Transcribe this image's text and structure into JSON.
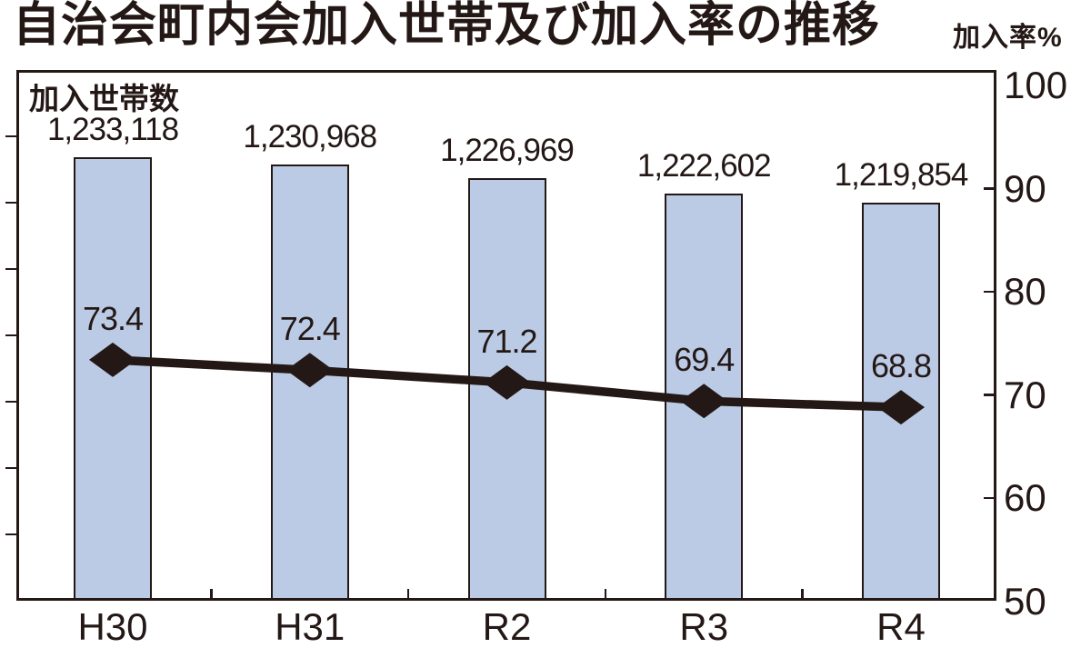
{
  "title": "自治会町内会加入世帯及び加入率の推移",
  "right_axis_title": "加入率%",
  "bar_series_label": "加入世帯数",
  "colors": {
    "ink": "#231815",
    "bar_fill": "#bccbe5",
    "background": "#ffffff"
  },
  "chart_data": {
    "type": "bar",
    "subtype": "bar-and-line-combo",
    "title": "自治会町内会加入世帯及び加入率の推移",
    "categories": [
      "H30",
      "H31",
      "R2",
      "R3",
      "R4"
    ],
    "series": [
      {
        "name": "加入世帯数",
        "type": "bar",
        "values": [
          1233118,
          1230968,
          1226969,
          1222602,
          1219854
        ],
        "labels": [
          "1,233,118",
          "1,230,968",
          "1,226,969",
          "1,222,602",
          "1,219,854"
        ]
      },
      {
        "name": "加入率",
        "type": "line",
        "axis": "right",
        "marker": "diamond",
        "values": [
          73.4,
          72.4,
          71.2,
          69.4,
          68.8
        ],
        "labels": [
          "73.4",
          "72.4",
          "71.2",
          "69.4",
          "68.8"
        ]
      }
    ],
    "right_axis": {
      "title": "加入率%",
      "unit": "%",
      "min": 50,
      "max": 100,
      "ticks": [
        100,
        90,
        80,
        70,
        60,
        50
      ]
    },
    "left_axis": {
      "title": "加入世帯数",
      "tick_labels_shown": false
    },
    "grid": false,
    "legend_position": "none"
  }
}
